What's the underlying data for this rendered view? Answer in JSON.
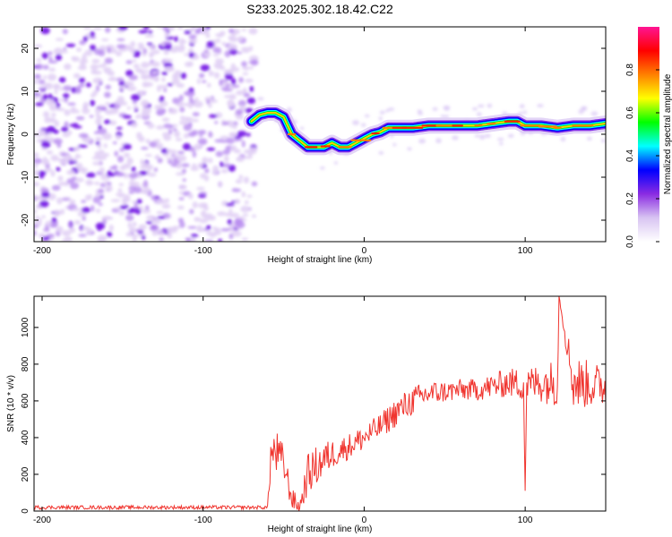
{
  "figure_title": "S233.2025.302.18.42.C22",
  "chart_data": [
    {
      "type": "heatmap",
      "name": "spectrogram",
      "xlabel": "Height of straight line (km)",
      "ylabel": "Frequency (Hz)",
      "xlim": [
        -205,
        150
      ],
      "ylim": [
        -25,
        25
      ],
      "x_ticks": [
        -200,
        -100,
        0,
        100
      ],
      "y_ticks": [
        -20,
        -10,
        0,
        10,
        20
      ],
      "noise_region_x": [
        -205,
        -68
      ],
      "ridge": {
        "x": [
          -70,
          -65,
          -60,
          -55,
          -50,
          -45,
          -40,
          -35,
          -30,
          -25,
          -20,
          -15,
          -10,
          -5,
          0,
          5,
          10,
          15,
          20,
          30,
          40,
          50,
          60,
          70,
          80,
          90,
          95,
          100,
          110,
          120,
          130,
          140,
          150
        ],
        "frequency_hz": [
          3,
          4.5,
          5,
          5,
          4,
          0,
          -1.5,
          -3,
          -3,
          -3,
          -2,
          -3,
          -3,
          -2,
          -1,
          0,
          0.5,
          1.5,
          1.5,
          1.5,
          2,
          2,
          2,
          2,
          2.5,
          3,
          3,
          2,
          2,
          1.5,
          2,
          2,
          2.5
        ]
      },
      "colorbar": {
        "label": "Normalized spectral amplitude",
        "range": [
          0,
          1
        ],
        "ticks": [
          "0.0",
          "0.2",
          "0.4",
          "0.6",
          "0.8"
        ],
        "colors": [
          "#ffffff",
          "#d8c4f2",
          "#8a2be2",
          "#0000ff",
          "#00ffff",
          "#00ff00",
          "#ffff00",
          "#ff8000",
          "#ff0000",
          "#ff1493"
        ]
      }
    },
    {
      "type": "line",
      "name": "snr",
      "xlabel": "Height of straight line (km)",
      "ylabel": "SNR (10 * v/v)",
      "xlim": [
        -205,
        150
      ],
      "ylim": [
        0,
        1170
      ],
      "x_ticks": [
        -200,
        -100,
        0,
        100
      ],
      "y_ticks": [
        0,
        200,
        400,
        600,
        800,
        1000
      ],
      "color": "#f0352f",
      "trend": {
        "x": [
          -205,
          -70,
          -60,
          -58,
          -55,
          -50,
          -45,
          -40,
          -35,
          -30,
          -25,
          -20,
          -10,
          0,
          10,
          20,
          30,
          40,
          50,
          60,
          70,
          80,
          90,
          99,
          100,
          101,
          110,
          120,
          121,
          130,
          140,
          150
        ],
        "y": [
          20,
          20,
          20,
          300,
          320,
          260,
          70,
          20,
          200,
          240,
          280,
          310,
          350,
          400,
          460,
          540,
          600,
          640,
          650,
          660,
          660,
          680,
          700,
          690,
          110,
          690,
          700,
          700,
          1170,
          700,
          690,
          680
        ],
        "noise_amplitude": [
          10,
          10,
          10,
          120,
          130,
          100,
          60,
          40,
          110,
          110,
          100,
          80,
          70,
          70,
          70,
          80,
          80,
          70,
          60,
          60,
          60,
          70,
          80,
          90,
          0,
          90,
          110,
          130,
          0,
          150,
          130,
          110
        ]
      }
    }
  ]
}
